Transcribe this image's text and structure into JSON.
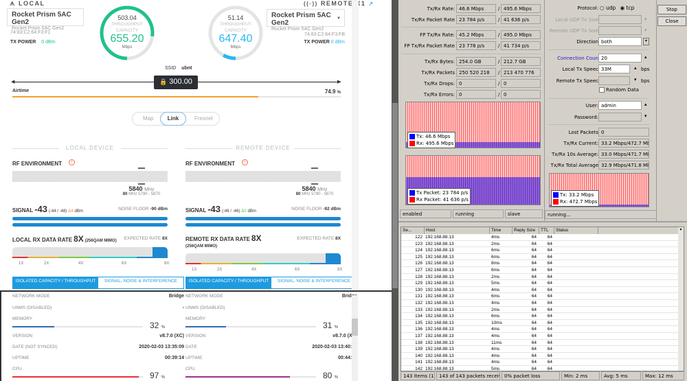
{
  "left": {
    "local_header": "LOCAL",
    "remote_header": "REMOTE X1",
    "local_device": {
      "name": "Rocket Prism 5AC Gen2",
      "model": "Rocket Prism 5AC Gen2",
      "mac": "74:83:C2:64:F3:F1",
      "tx_power_label": "TX POWER",
      "tx_power": "0 dBm"
    },
    "remote_device": {
      "name": "Rocket Prism 5AC Gen2",
      "model": "Rocket Prism 5AC Gen2",
      "mac": "74:83:C2:64:F3:FB",
      "tx_power_label": "TX POWER",
      "tx_power": "0 dBm"
    },
    "gauge_local": {
      "throughput": "503.04",
      "label1": "THROUGHPUT",
      "label2": "CAPACITY",
      "capacity": "655.20",
      "unit": "Mbps",
      "fill": 0.77,
      "color": "#1ec28b"
    },
    "gauge_remote": {
      "throughput": "51.14",
      "label1": "THROUGHPUT",
      "label2": "CAPACITY",
      "capacity": "647.40",
      "unit": "Mbps",
      "fill": 0.08,
      "color": "#29b6f6"
    },
    "ssid_label": "SSID",
    "ssid": "ubnt",
    "distance": "300.00",
    "distance_unit": "m",
    "airtime_label": "Airtime",
    "airtime": "74.9",
    "airtime_unit": "%",
    "airtime_fraction": 0.749,
    "tabs": [
      "Map",
      "Link",
      "Fresnel"
    ],
    "active_tab": "Link",
    "local_section": "LOCAL DEVICE",
    "remote_section": "REMOTE DEVICE",
    "local": {
      "rf_label": "RF ENVIRONMENT",
      "freq": "5840",
      "freq_unit": "MHz",
      "width": "80",
      "band": "MHz 5790 - 5870",
      "signal_label": "SIGNAL",
      "signal": "-43",
      "signal_chains": "(-44 / -48)",
      "delta": "Δ4",
      "signal_unit": "dBm",
      "noise_label": "NOISE FLOOR",
      "noise": "-90 dBm",
      "rate_label": "LOCAL RX DATA RATE",
      "rate": "8X",
      "rate_mod": "(256QAM MIMO)",
      "expected_label": "EXPECTED RATE",
      "expected": "8X",
      "rate_ticks": [
        "1X",
        "2X",
        "4X",
        "6X",
        "8X"
      ],
      "btn_capacity": "ISOLATED CAPACITY / THROUGHPUT",
      "btn_signal": "SIGNAL, NOISE & INTERFERENCE",
      "network_mode_label": "NETWORK MODE",
      "network_mode": "Bridge",
      "unms_label": "UNMS (DISABLED)",
      "unms": "-",
      "memory_label": "MEMORY",
      "memory": "32",
      "memory_unit": "%",
      "version_label": "VERSION",
      "version": "v8.7.0 (XC)",
      "date_label": "DATE (NOT SYNCED)",
      "date": "2020-02-03 13:35:09",
      "uptime_label": "UPTIME",
      "uptime": "00:39:14",
      "cpu_label": "CPU",
      "cpu": "97",
      "cpu_unit": "%",
      "cpu_color": "#e8303a"
    },
    "remote": {
      "rf_label": "RF ENVIRONMENT",
      "freq": "5840",
      "freq_unit": "MHz",
      "width": "80",
      "band": "MHz 5790 - 5870",
      "signal_label": "SIGNAL",
      "signal": "-43",
      "signal_chains": "(-46 / -46)",
      "delta": "Δ0",
      "signal_unit": "dBm",
      "noise_label": "NOISE FLOOR",
      "noise": "-92 dBm",
      "rate_label": "REMOTE RX DATA RATE",
      "rate": "8X",
      "rate_mod": "(256QAM MIMO)",
      "expected_label": "EXPECTED RATE",
      "expected": "8X",
      "rate_ticks": [
        "1X",
        "2X",
        "4X",
        "6X",
        "8X"
      ],
      "btn_capacity": "ISOLATED CAPACITY / THROUGHPUT",
      "btn_signal": "SIGNAL, NOISE & INTERFERENCE",
      "network_mode_label": "NETWORK MODE",
      "network_mode": "Bridge",
      "unms_label": "UNMS (DISABLED)",
      "unms": "-",
      "memory_label": "MEMORY",
      "memory": "31",
      "memory_unit": "%",
      "version_label": "VERSION",
      "version": "v8.7.0 (XC)",
      "date_label": "DATE",
      "date": "2020-02-03 13:40:08",
      "uptime_label": "UPTIME",
      "uptime": "00:44:13",
      "cpu_label": "CPU",
      "cpu": "80",
      "cpu_unit": "%",
      "cpu_color": "#a0308a"
    }
  },
  "bwtest": {
    "stats": [
      {
        "label": "Tx/Rx Rate:",
        "tx": "46.6 Mbps",
        "rx": "495.6 Mbps"
      },
      {
        "label": "Tx/Rx Packet Rate",
        "tx": "23 784 p/s",
        "rx": "41 636 p/s"
      },
      {
        "label": "FP Tx/Rx Rate:",
        "tx": "45.2 Mbps",
        "rx": "495.0 Mbps"
      },
      {
        "label": "FP Tx/Rx Packet Rate",
        "tx": "23 778 p/s",
        "rx": "41 734 p/s"
      },
      {
        "label": "Tx/Rx Bytes:",
        "tx": "254.0 GB",
        "rx": "212.7 GB"
      },
      {
        "label": "Tx/Rx Packets",
        "tx": "250 520 218",
        "rx": "213 470 776"
      },
      {
        "label": "Tx/Rx Drops:",
        "tx": "0",
        "rx": "0"
      },
      {
        "label": "Tx/Rx Errors:",
        "tx": "0",
        "rx": "0"
      }
    ],
    "graph1_legend": {
      "tx": "Tx:  46.6 Mbps",
      "rx": "Rx:  495.6 Mbps"
    },
    "graph2_legend": {
      "tx": "Tx Packet:  23 784 p/s",
      "rx": "Rx Packet:  41 636 p/s"
    },
    "status": [
      "enabled",
      "running",
      "slave"
    ],
    "protocol_label": "Protocol:",
    "protocol_options": [
      "udp",
      "tcp"
    ],
    "protocol": "tcp",
    "local_udp_label": "Local UDP Tx Size",
    "remote_udp_label": "Remote UDP Tx Size",
    "direction_label": "Direction",
    "direction": "both",
    "conn_label": "Connection Coun",
    "conn": "20",
    "local_speed_label": "Local Tx Speec",
    "local_speed": "33M",
    "bps": "bps",
    "remote_speed_label": "Remote Tx Speec",
    "random_label": "Random Data",
    "user_label": "User:",
    "user": "admin",
    "password_label": "Password:",
    "lost_label": "Lost Packets",
    "lost": "0",
    "current_label": "Tx/Rx Current:",
    "current": "33.2 Mbps/472.7 Mbps",
    "avg10_label": "Tx/Rx 10s Average:",
    "avg10": "33.0 Mbps/471.7 Mbps",
    "total_label": "Tx/Rx Total Average",
    "total": "32.9 Mbps/471.8 Mbps",
    "graph3_legend": {
      "tx": "Tx:  33.2 Mbps",
      "rx": "Rx:  472.7 Mbps"
    },
    "run_status": "running...",
    "stop": "Stop",
    "close": "Close",
    "colors": {
      "tx": "#0000ff",
      "rx": "#ff0000"
    }
  },
  "ping": {
    "columns": [
      "Se...",
      "Host",
      "Time",
      "Reply Size",
      "TTL",
      "Status"
    ],
    "rows": [
      [
        "122",
        "192.168.88.13",
        "4ms",
        "64",
        "64"
      ],
      [
        "123",
        "192.168.88.13",
        "2ms",
        "64",
        "64"
      ],
      [
        "124",
        "192.168.88.13",
        "6ms",
        "64",
        "64"
      ],
      [
        "125",
        "192.168.88.13",
        "6ms",
        "64",
        "64"
      ],
      [
        "126",
        "192.168.88.13",
        "8ms",
        "64",
        "64"
      ],
      [
        "127",
        "192.168.88.13",
        "6ms",
        "64",
        "64"
      ],
      [
        "128",
        "192.168.88.13",
        "2ms",
        "64",
        "64"
      ],
      [
        "129",
        "192.168.88.13",
        "5ms",
        "64",
        "64"
      ],
      [
        "130",
        "192.168.88.13",
        "4ms",
        "64",
        "64"
      ],
      [
        "131",
        "192.168.88.13",
        "6ms",
        "64",
        "64"
      ],
      [
        "132",
        "192.168.88.13",
        "4ms",
        "64",
        "64"
      ],
      [
        "133",
        "192.168.88.13",
        "2ms",
        "64",
        "64"
      ],
      [
        "134",
        "192.168.88.13",
        "6ms",
        "64",
        "64"
      ],
      [
        "135",
        "192.168.88.13",
        "10ms",
        "64",
        "64"
      ],
      [
        "136",
        "192.168.88.13",
        "4ms",
        "64",
        "64"
      ],
      [
        "137",
        "192.168.88.13",
        "4ms",
        "64",
        "64"
      ],
      [
        "138",
        "192.168.88.13",
        "11ms",
        "64",
        "64"
      ],
      [
        "139",
        "192.168.88.13",
        "4ms",
        "64",
        "64"
      ],
      [
        "140",
        "192.168.88.13",
        "4ms",
        "64",
        "64"
      ],
      [
        "141",
        "192.168.88.13",
        "4ms",
        "64",
        "64"
      ],
      [
        "142",
        "192.168.88.13",
        "5ms",
        "64",
        "64"
      ]
    ],
    "footer": [
      "143 items (1...",
      "143 of 143 packets receivec",
      "0% packet loss",
      "Min: 2 ms",
      "Avg: 5 ms",
      "Max: 12 ms"
    ]
  }
}
